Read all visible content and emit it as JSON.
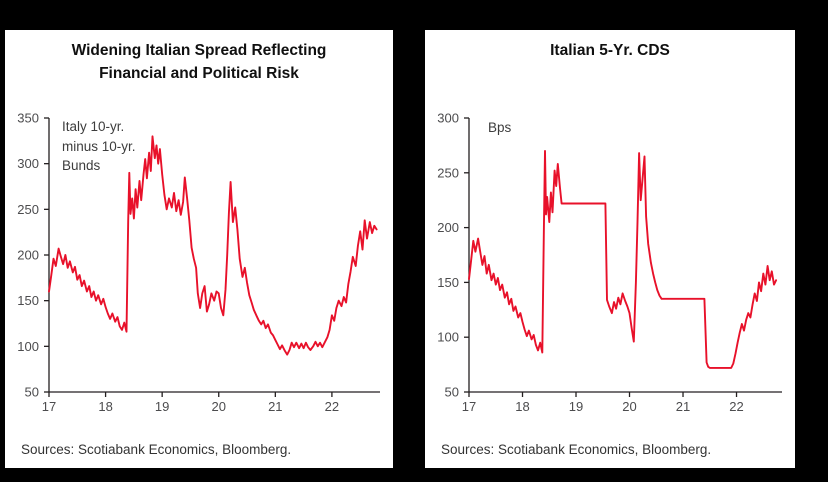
{
  "chart_data": [
    {
      "type": "line",
      "title": "Widening Italian Spread Reflecting\nFinancial and Political Risk",
      "annotation": "Italy 10-yr.\nminus 10-yr.\nBunds",
      "source": "Sources: Scotiabank Economics, Bloomberg.",
      "series_name": "Italy 10-yr. minus 10-yr. Bunds spread (bps)",
      "xlabel": "",
      "ylabel": "",
      "xlim": [
        17,
        22.85
      ],
      "ylim": [
        50,
        350
      ],
      "xticks": [
        17,
        18,
        19,
        20,
        21,
        22
      ],
      "yticks": [
        50,
        100,
        150,
        200,
        250,
        300,
        350
      ],
      "grid": false,
      "legend": "none",
      "line_color": "#e8112a",
      "axis_color": "#231f20",
      "points": [
        [
          17.0,
          160
        ],
        [
          17.04,
          178
        ],
        [
          17.08,
          196
        ],
        [
          17.12,
          188
        ],
        [
          17.17,
          207
        ],
        [
          17.21,
          198
        ],
        [
          17.25,
          190
        ],
        [
          17.29,
          200
        ],
        [
          17.33,
          186
        ],
        [
          17.37,
          193
        ],
        [
          17.42,
          181
        ],
        [
          17.46,
          187
        ],
        [
          17.5,
          173
        ],
        [
          17.54,
          178
        ],
        [
          17.58,
          166
        ],
        [
          17.62,
          172
        ],
        [
          17.67,
          160
        ],
        [
          17.71,
          166
        ],
        [
          17.75,
          154
        ],
        [
          17.79,
          160
        ],
        [
          17.83,
          150
        ],
        [
          17.87,
          156
        ],
        [
          17.92,
          146
        ],
        [
          17.96,
          152
        ],
        [
          18.0,
          143
        ],
        [
          18.04,
          136
        ],
        [
          18.08,
          130
        ],
        [
          18.12,
          136
        ],
        [
          18.17,
          127
        ],
        [
          18.21,
          132
        ],
        [
          18.25,
          122
        ],
        [
          18.29,
          118
        ],
        [
          18.33,
          126
        ],
        [
          18.37,
          116
        ],
        [
          18.4,
          238
        ],
        [
          18.42,
          290
        ],
        [
          18.44,
          245
        ],
        [
          18.47,
          262
        ],
        [
          18.5,
          240
        ],
        [
          18.53,
          272
        ],
        [
          18.56,
          252
        ],
        [
          18.6,
          281
        ],
        [
          18.63,
          260
        ],
        [
          18.67,
          288
        ],
        [
          18.7,
          305
        ],
        [
          18.73,
          284
        ],
        [
          18.77,
          312
        ],
        [
          18.8,
          292
        ],
        [
          18.83,
          330
        ],
        [
          18.87,
          306
        ],
        [
          18.9,
          320
        ],
        [
          18.93,
          300
        ],
        [
          18.96,
          316
        ],
        [
          19.0,
          288
        ],
        [
          19.04,
          266
        ],
        [
          19.08,
          250
        ],
        [
          19.12,
          262
        ],
        [
          19.17,
          252
        ],
        [
          19.21,
          268
        ],
        [
          19.25,
          248
        ],
        [
          19.29,
          260
        ],
        [
          19.33,
          244
        ],
        [
          19.37,
          258
        ],
        [
          19.4,
          285
        ],
        [
          19.44,
          262
        ],
        [
          19.48,
          238
        ],
        [
          19.52,
          208
        ],
        [
          19.56,
          196
        ],
        [
          19.6,
          186
        ],
        [
          19.63,
          158
        ],
        [
          19.67,
          142
        ],
        [
          19.71,
          158
        ],
        [
          19.75,
          166
        ],
        [
          19.79,
          138
        ],
        [
          19.83,
          146
        ],
        [
          19.87,
          158
        ],
        [
          19.92,
          150
        ],
        [
          19.96,
          160
        ],
        [
          20.0,
          158
        ],
        [
          20.04,
          142
        ],
        [
          20.08,
          134
        ],
        [
          20.12,
          162
        ],
        [
          20.15,
          200
        ],
        [
          20.18,
          246
        ],
        [
          20.21,
          280
        ],
        [
          20.25,
          236
        ],
        [
          20.29,
          252
        ],
        [
          20.33,
          228
        ],
        [
          20.37,
          196
        ],
        [
          20.42,
          176
        ],
        [
          20.46,
          186
        ],
        [
          20.5,
          170
        ],
        [
          20.54,
          156
        ],
        [
          20.58,
          148
        ],
        [
          20.62,
          140
        ],
        [
          20.67,
          133
        ],
        [
          20.71,
          128
        ],
        [
          20.75,
          124
        ],
        [
          20.79,
          128
        ],
        [
          20.83,
          120
        ],
        [
          20.87,
          124
        ],
        [
          20.92,
          115
        ],
        [
          20.96,
          112
        ],
        [
          21.0,
          107
        ],
        [
          21.04,
          102
        ],
        [
          21.08,
          97
        ],
        [
          21.12,
          101
        ],
        [
          21.17,
          95
        ],
        [
          21.21,
          91
        ],
        [
          21.25,
          96
        ],
        [
          21.29,
          104
        ],
        [
          21.33,
          99
        ],
        [
          21.37,
          104
        ],
        [
          21.42,
          98
        ],
        [
          21.46,
          103
        ],
        [
          21.5,
          98
        ],
        [
          21.54,
          104
        ],
        [
          21.58,
          99
        ],
        [
          21.62,
          96
        ],
        [
          21.67,
          100
        ],
        [
          21.71,
          105
        ],
        [
          21.75,
          100
        ],
        [
          21.79,
          104
        ],
        [
          21.83,
          99
        ],
        [
          21.87,
          104
        ],
        [
          21.92,
          110
        ],
        [
          21.96,
          118
        ],
        [
          22.0,
          134
        ],
        [
          22.04,
          128
        ],
        [
          22.08,
          142
        ],
        [
          22.12,
          150
        ],
        [
          22.17,
          144
        ],
        [
          22.21,
          154
        ],
        [
          22.25,
          148
        ],
        [
          22.29,
          168
        ],
        [
          22.33,
          182
        ],
        [
          22.37,
          198
        ],
        [
          22.42,
          188
        ],
        [
          22.46,
          210
        ],
        [
          22.5,
          226
        ],
        [
          22.54,
          206
        ],
        [
          22.58,
          238
        ],
        [
          22.62,
          218
        ],
        [
          22.67,
          236
        ],
        [
          22.71,
          224
        ],
        [
          22.75,
          232
        ],
        [
          22.79,
          228
        ]
      ]
    },
    {
      "type": "line",
      "title": "Italian 5-Yr. CDS",
      "annotation": "Bps",
      "source": "Sources: Scotiabank Economics, Bloomberg.",
      "series_name": "Italian 5-yr. CDS (bps)",
      "xlabel": "",
      "ylabel": "",
      "xlim": [
        17,
        22.85
      ],
      "ylim": [
        50,
        300
      ],
      "xticks": [
        17,
        18,
        19,
        20,
        21,
        22
      ],
      "yticks": [
        50,
        100,
        150,
        200,
        250,
        300
      ],
      "grid": false,
      "legend": "none",
      "line_color": "#e8112a",
      "axis_color": "#231f20",
      "points": [
        [
          17.0,
          153
        ],
        [
          17.04,
          170
        ],
        [
          17.08,
          188
        ],
        [
          17.12,
          178
        ],
        [
          17.17,
          190
        ],
        [
          17.21,
          178
        ],
        [
          17.25,
          166
        ],
        [
          17.29,
          174
        ],
        [
          17.33,
          158
        ],
        [
          17.37,
          166
        ],
        [
          17.42,
          152
        ],
        [
          17.46,
          158
        ],
        [
          17.5,
          148
        ],
        [
          17.54,
          154
        ],
        [
          17.58,
          143
        ],
        [
          17.62,
          148
        ],
        [
          17.67,
          136
        ],
        [
          17.71,
          141
        ],
        [
          17.75,
          130
        ],
        [
          17.79,
          135
        ],
        [
          17.83,
          124
        ],
        [
          17.87,
          128
        ],
        [
          17.92,
          118
        ],
        [
          17.96,
          122
        ],
        [
          18.0,
          114
        ],
        [
          18.04,
          107
        ],
        [
          18.08,
          101
        ],
        [
          18.12,
          106
        ],
        [
          18.17,
          98
        ],
        [
          18.21,
          102
        ],
        [
          18.25,
          93
        ],
        [
          18.29,
          88
        ],
        [
          18.33,
          95
        ],
        [
          18.37,
          86
        ],
        [
          18.4,
          200
        ],
        [
          18.42,
          270
        ],
        [
          18.44,
          212
        ],
        [
          18.46,
          228
        ],
        [
          18.5,
          205
        ],
        [
          18.53,
          232
        ],
        [
          18.56,
          214
        ],
        [
          18.6,
          252
        ],
        [
          18.63,
          238
        ],
        [
          18.66,
          258
        ],
        [
          18.7,
          236
        ],
        [
          18.73,
          222
        ],
        [
          18.77,
          222
        ],
        [
          19.5,
          222
        ],
        [
          19.55,
          222
        ],
        [
          19.58,
          134
        ],
        [
          19.62,
          128
        ],
        [
          19.67,
          122
        ],
        [
          19.71,
          132
        ],
        [
          19.75,
          126
        ],
        [
          19.79,
          136
        ],
        [
          19.83,
          130
        ],
        [
          19.87,
          140
        ],
        [
          19.92,
          133
        ],
        [
          19.96,
          128
        ],
        [
          20.0,
          122
        ],
        [
          20.04,
          108
        ],
        [
          20.08,
          96
        ],
        [
          20.12,
          150
        ],
        [
          20.15,
          205
        ],
        [
          20.18,
          268
        ],
        [
          20.21,
          225
        ],
        [
          20.25,
          248
        ],
        [
          20.28,
          265
        ],
        [
          20.31,
          210
        ],
        [
          20.35,
          185
        ],
        [
          20.4,
          168
        ],
        [
          20.44,
          158
        ],
        [
          20.48,
          150
        ],
        [
          20.52,
          143
        ],
        [
          20.56,
          138
        ],
        [
          20.6,
          135
        ],
        [
          21.4,
          135
        ],
        [
          21.44,
          77
        ],
        [
          21.47,
          73
        ],
        [
          21.5,
          72
        ],
        [
          21.9,
          72
        ],
        [
          21.94,
          76
        ],
        [
          21.98,
          85
        ],
        [
          22.02,
          95
        ],
        [
          22.06,
          104
        ],
        [
          22.1,
          112
        ],
        [
          22.14,
          106
        ],
        [
          22.18,
          116
        ],
        [
          22.22,
          122
        ],
        [
          22.26,
          118
        ],
        [
          22.3,
          130
        ],
        [
          22.34,
          140
        ],
        [
          22.38,
          133
        ],
        [
          22.42,
          150
        ],
        [
          22.46,
          142
        ],
        [
          22.5,
          158
        ],
        [
          22.54,
          148
        ],
        [
          22.58,
          165
        ],
        [
          22.62,
          152
        ],
        [
          22.66,
          160
        ],
        [
          22.7,
          148
        ],
        [
          22.74,
          152
        ]
      ]
    }
  ]
}
